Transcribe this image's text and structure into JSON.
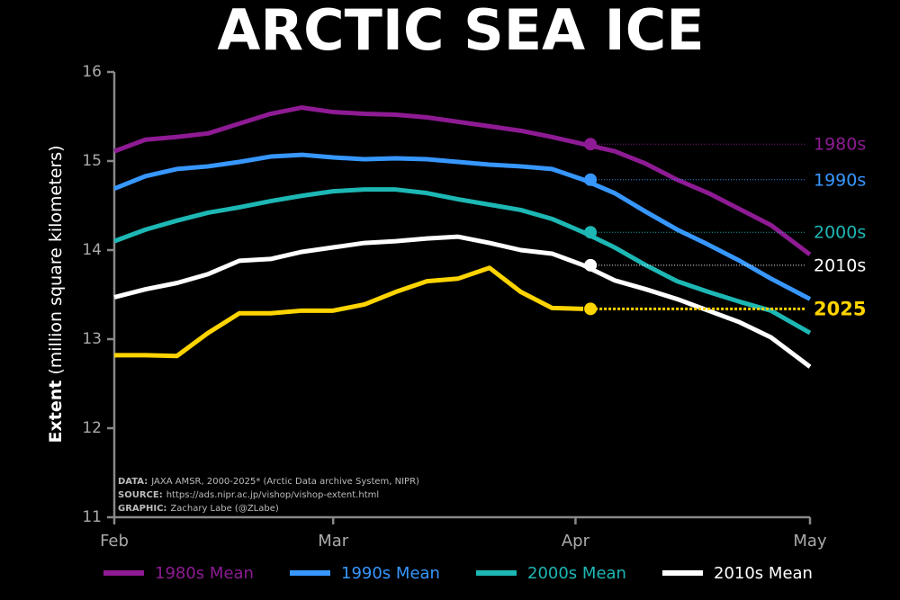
{
  "chart_data": {
    "type": "line",
    "title": "ARCTIC SEA ICE",
    "ylabel_bold": "Extent",
    "ylabel": "(million square kilometers)",
    "x": [
      0,
      4,
      8,
      12,
      16,
      20,
      24,
      28,
      32,
      36,
      40,
      44,
      48,
      52,
      56,
      60,
      64,
      68,
      72,
      76,
      80,
      84,
      89
    ],
    "xlim": [
      0,
      89
    ],
    "xticks": [
      {
        "value": 0,
        "label": "Feb"
      },
      {
        "value": 28,
        "label": "Mar"
      },
      {
        "value": 59,
        "label": "Apr"
      },
      {
        "value": 89,
        "label": "May"
      }
    ],
    "ylim": [
      11,
      16
    ],
    "yticks": [
      11,
      12,
      13,
      14,
      15,
      16
    ],
    "marker_x": 60,
    "series": [
      {
        "name": "1980s Mean",
        "label": "1980s",
        "color": "#8e1b93",
        "legend": true,
        "values": [
          15.11,
          15.24,
          15.27,
          15.31,
          15.42,
          15.53,
          15.6,
          15.55,
          15.53,
          15.52,
          15.49,
          15.44,
          15.39,
          15.34,
          15.27,
          15.19,
          15.11,
          14.97,
          14.79,
          14.64,
          14.46,
          14.28,
          13.95
        ]
      },
      {
        "name": "1990s Mean",
        "label": "1990s",
        "color": "#3797ff",
        "legend": true,
        "values": [
          14.69,
          14.83,
          14.91,
          14.94,
          14.99,
          15.05,
          15.07,
          15.04,
          15.02,
          15.03,
          15.02,
          14.99,
          14.96,
          14.94,
          14.91,
          14.79,
          14.64,
          14.43,
          14.23,
          14.06,
          13.88,
          13.68,
          13.45
        ]
      },
      {
        "name": "2000s Mean",
        "label": "2000s",
        "color": "#1db7b4",
        "legend": true,
        "values": [
          14.1,
          14.23,
          14.33,
          14.42,
          14.48,
          14.55,
          14.61,
          14.66,
          14.68,
          14.68,
          14.64,
          14.57,
          14.51,
          14.45,
          14.35,
          14.2,
          14.03,
          13.83,
          13.65,
          13.53,
          13.42,
          13.32,
          13.07
        ]
      },
      {
        "name": "2010s Mean",
        "label": "2010s",
        "color": "#ffffff",
        "legend": true,
        "values": [
          13.47,
          13.56,
          13.63,
          13.73,
          13.88,
          13.9,
          13.98,
          14.03,
          14.08,
          14.1,
          14.13,
          14.15,
          14.08,
          14.0,
          13.96,
          13.83,
          13.66,
          13.56,
          13.45,
          13.32,
          13.19,
          13.02,
          12.69
        ]
      },
      {
        "name": "2025",
        "color": "#ffd400",
        "legend": false,
        "values": [
          12.82,
          12.82,
          12.81,
          13.07,
          13.29,
          13.29,
          13.32,
          13.32,
          13.39,
          13.53,
          13.65,
          13.68,
          13.8,
          13.53,
          13.35,
          13.34,
          null,
          null,
          null,
          null,
          null,
          null,
          null
        ]
      }
    ],
    "notes": [
      {
        "label": "DATA:",
        "text": "JAXA AMSR, 2000-2025* (Arctic Data archive System, NIPR)"
      },
      {
        "label": "SOURCE:",
        "text": "https://ads.nipr.ac.jp/vishop/vishop-extent.html"
      },
      {
        "label": "GRAPHIC:",
        "text": "Zachary Labe (@ZLabe)"
      }
    ]
  }
}
